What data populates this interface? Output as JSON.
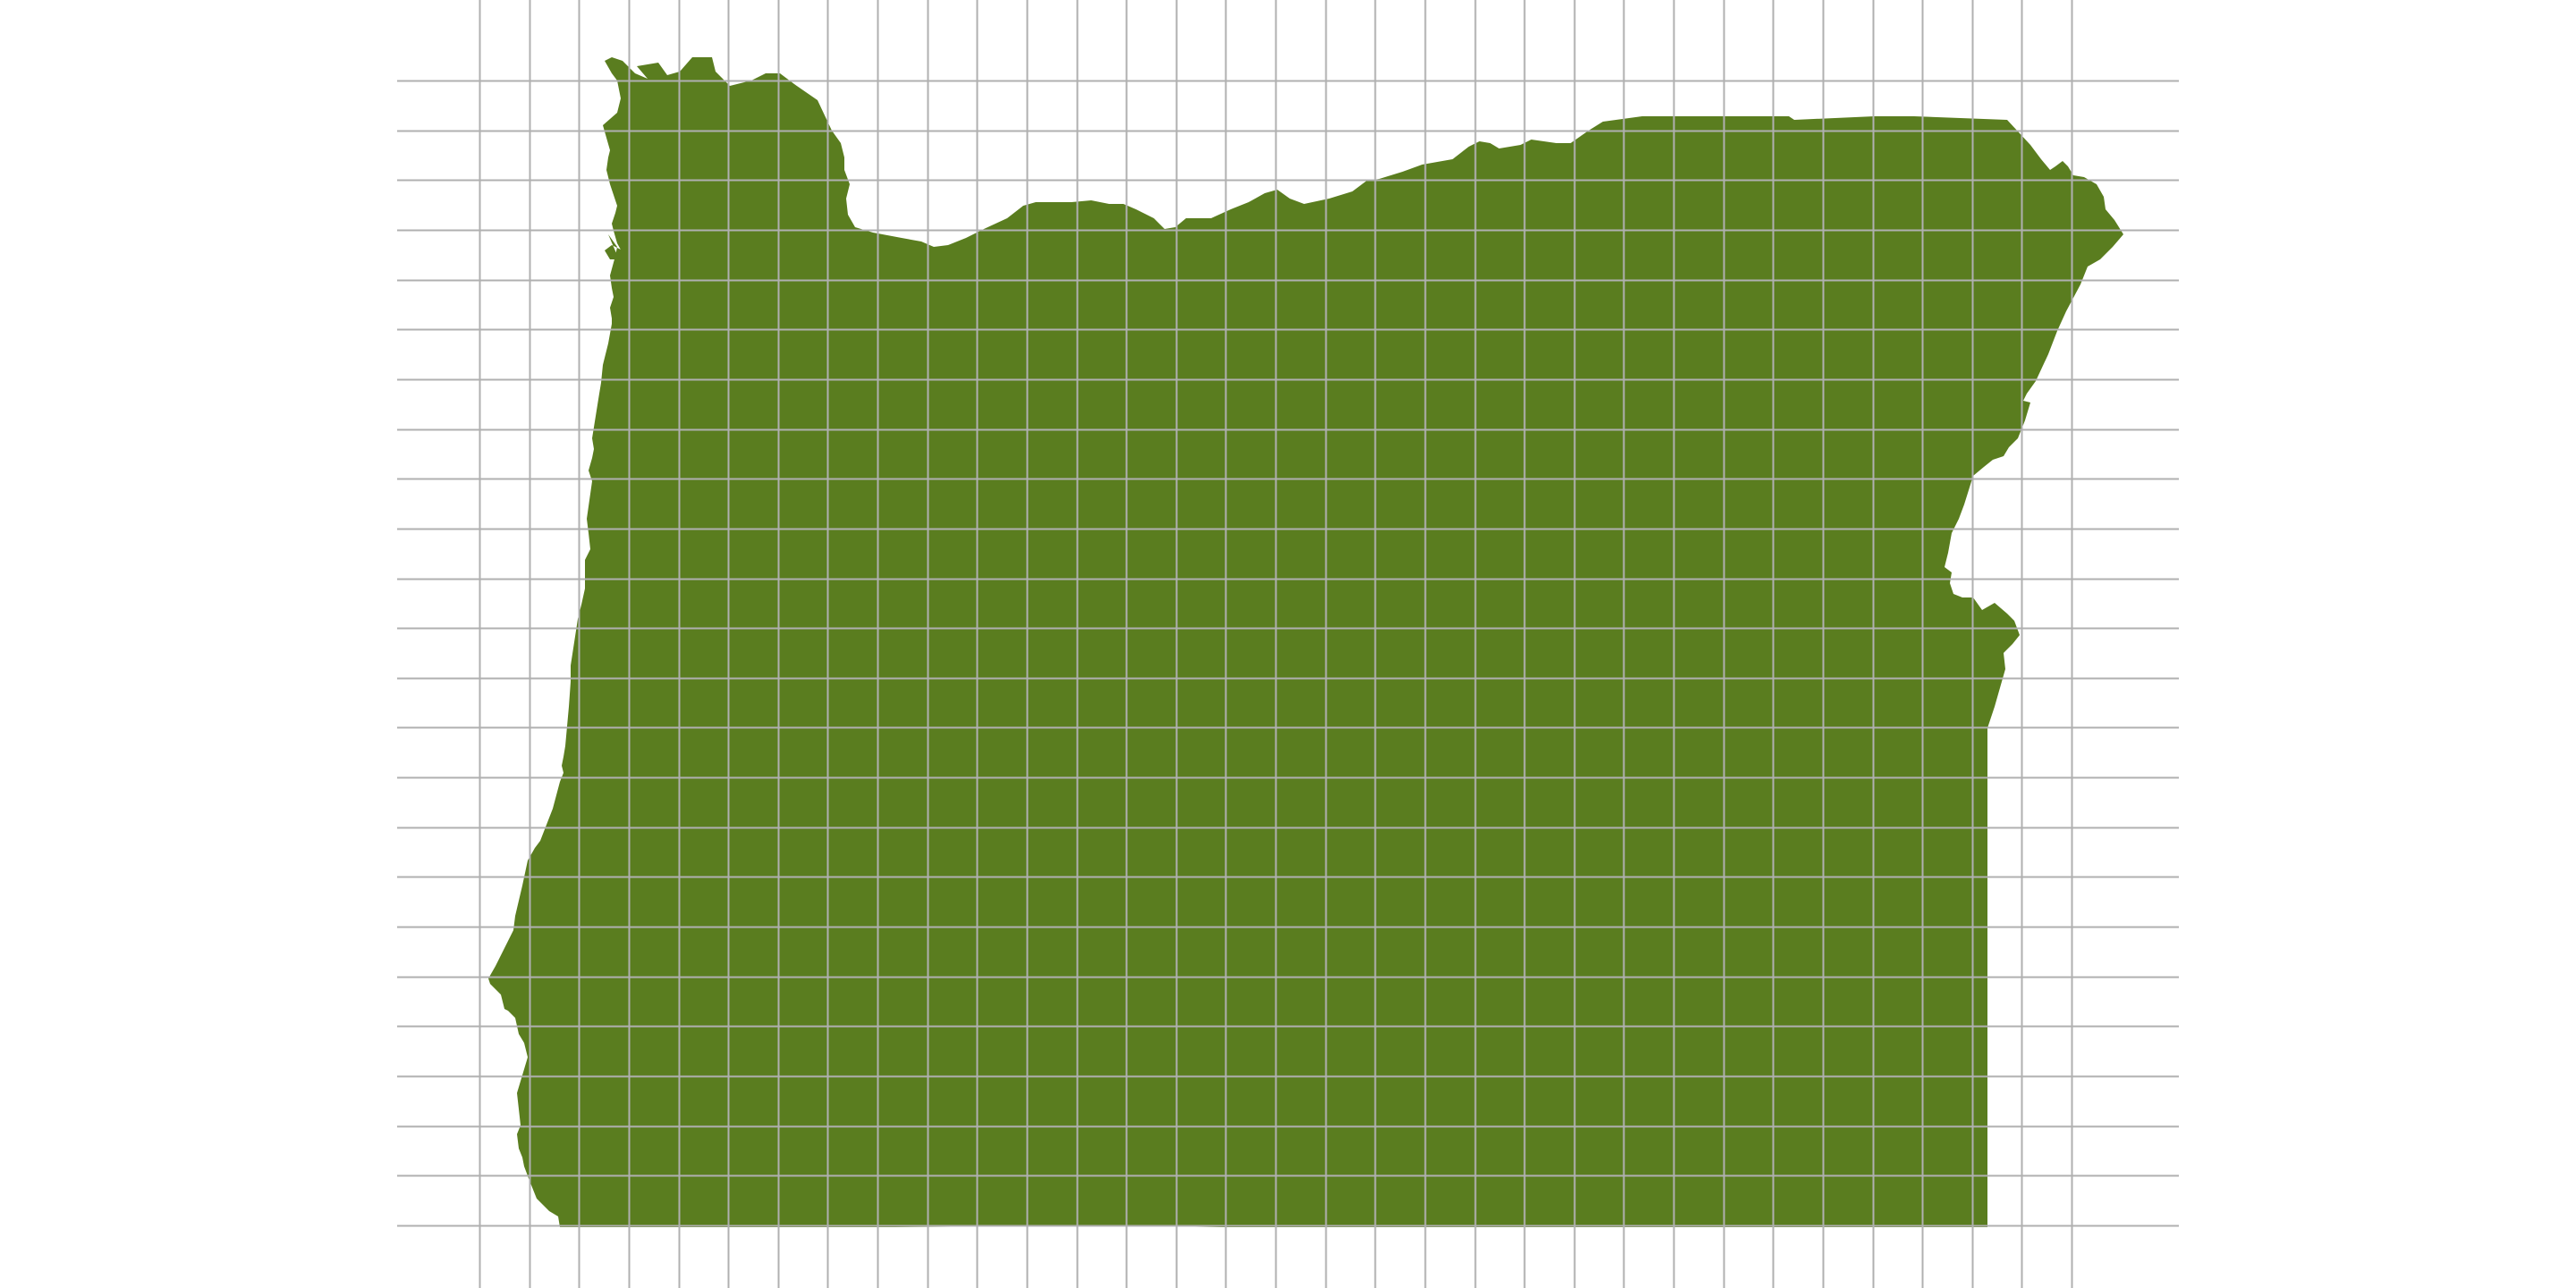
{
  "map": {
    "region": "Oregon",
    "fill_color": "#5a7d1f",
    "background_color": "#ffffff",
    "grid": {
      "visible": true,
      "color": "#b0b0b0",
      "horizontal_lines": 24,
      "vertical_lines": 33
    }
  }
}
